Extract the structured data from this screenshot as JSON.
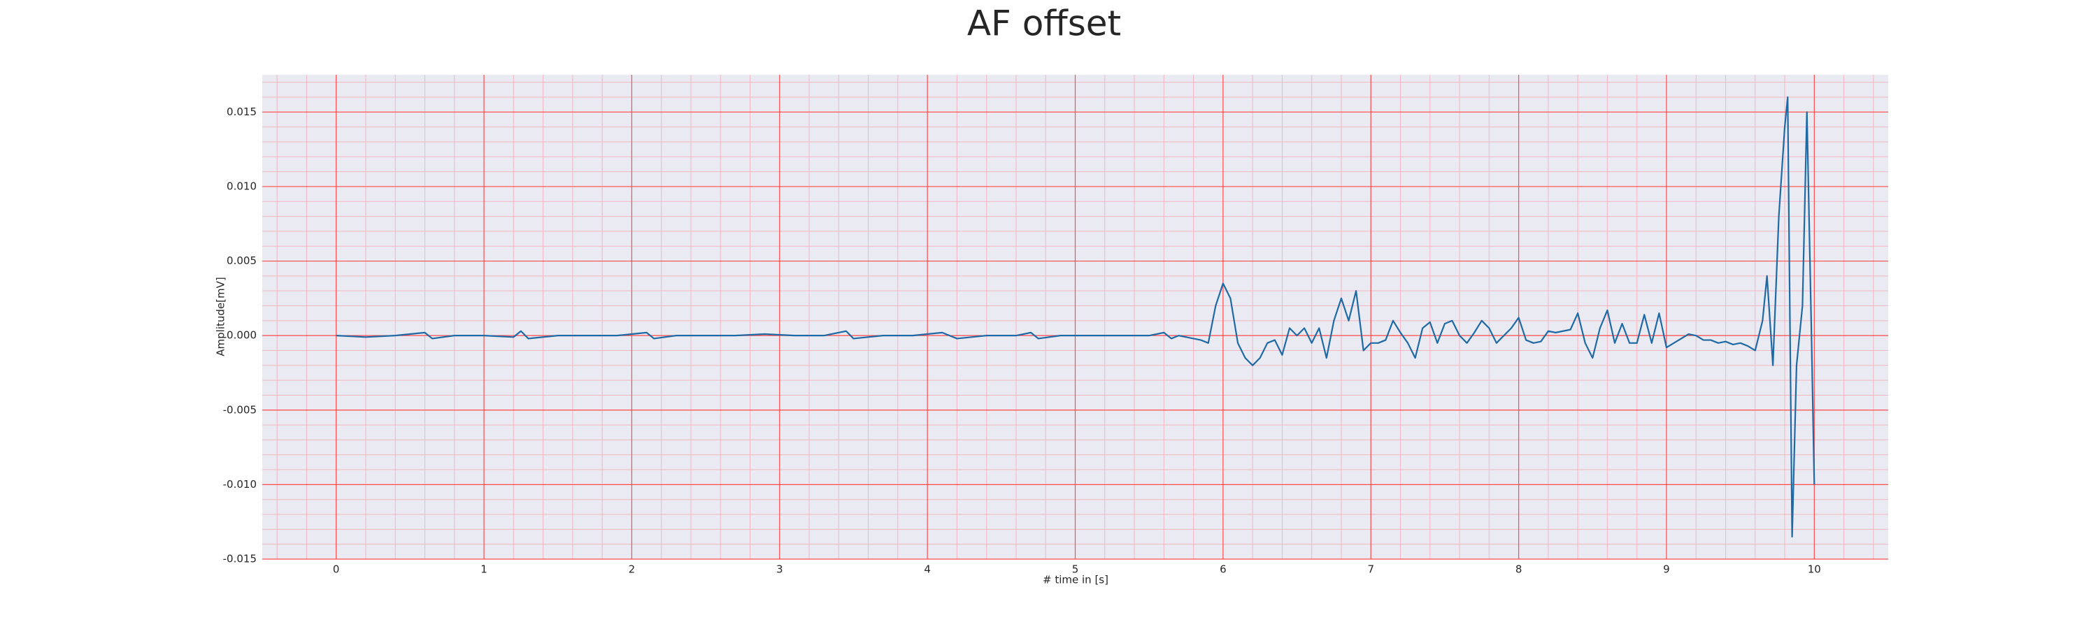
{
  "chart_data": {
    "type": "line",
    "title": "AF offset",
    "xlabel": "# time in [s]",
    "ylabel": "Amplitude[mV]",
    "xlim": [
      -0.5,
      10.5
    ],
    "ylim": [
      -0.015,
      0.0175
    ],
    "xticks": [
      0,
      1,
      2,
      3,
      4,
      5,
      6,
      7,
      8,
      9,
      10
    ],
    "yticks": [
      {
        "value": -0.015,
        "label": "-0.015"
      },
      {
        "value": -0.01,
        "label": "-0.010"
      },
      {
        "value": -0.005,
        "label": "-0.005"
      },
      {
        "value": 0,
        "label": "0.000"
      },
      {
        "value": 0.005,
        "label": "0.005"
      },
      {
        "value": 0.01,
        "label": "0.010"
      },
      {
        "value": 0.015,
        "label": "0.015"
      }
    ],
    "grid": true,
    "grid_color": "#ff4d4d",
    "minor_grid": true,
    "minor_grid_color": "#f4b6c2",
    "background": "#eaeaf2",
    "series": [
      {
        "color": "#1f6aa5",
        "x": [
          0,
          0.2,
          0.4,
          0.6,
          0.65,
          0.8,
          1.0,
          1.2,
          1.25,
          1.3,
          1.5,
          1.7,
          1.9,
          2.1,
          2.15,
          2.3,
          2.5,
          2.7,
          2.9,
          3.1,
          3.3,
          3.45,
          3.5,
          3.7,
          3.9,
          4.1,
          4.2,
          4.4,
          4.6,
          4.7,
          4.75,
          4.9,
          5.1,
          5.3,
          5.5,
          5.6,
          5.65,
          5.7,
          5.8,
          5.85,
          5.9,
          5.95,
          6.0,
          6.05,
          6.1,
          6.15,
          6.2,
          6.25,
          6.3,
          6.35,
          6.4,
          6.45,
          6.5,
          6.55,
          6.6,
          6.65,
          6.7,
          6.75,
          6.8,
          6.85,
          6.9,
          6.95,
          7.0,
          7.05,
          7.1,
          7.15,
          7.2,
          7.25,
          7.3,
          7.35,
          7.4,
          7.45,
          7.5,
          7.55,
          7.6,
          7.65,
          7.7,
          7.75,
          7.8,
          7.85,
          7.9,
          7.95,
          8.0,
          8.05,
          8.1,
          8.15,
          8.2,
          8.25,
          8.3,
          8.35,
          8.4,
          8.45,
          8.5,
          8.55,
          8.6,
          8.65,
          8.7,
          8.75,
          8.8,
          8.85,
          8.9,
          8.95,
          9.0,
          9.05,
          9.1,
          9.15,
          9.2,
          9.25,
          9.3,
          9.35,
          9.4,
          9.45,
          9.5,
          9.55,
          9.6,
          9.65,
          9.68,
          9.72,
          9.76,
          9.8,
          9.82,
          9.85,
          9.88,
          9.92,
          9.95,
          9.98,
          10.0
        ],
        "values": [
          0,
          -0.0001,
          0,
          0.0002,
          -0.0002,
          0,
          0,
          -0.0001,
          0.0003,
          -0.0002,
          0,
          0,
          0,
          0.0002,
          -0.0002,
          0,
          0,
          0,
          0.0001,
          0,
          0,
          0.0003,
          -0.0002,
          0,
          0,
          0.0002,
          -0.0002,
          0,
          0,
          0.0002,
          -0.0002,
          0,
          0,
          0,
          0,
          0.0002,
          -0.0002,
          0,
          -0.0002,
          -0.0003,
          -0.0005,
          0.002,
          0.0035,
          0.0025,
          -0.0005,
          -0.0015,
          -0.002,
          -0.0015,
          -0.0005,
          -0.0003,
          -0.0013,
          0.0005,
          0,
          0.0005,
          -0.0005,
          0.0005,
          -0.0015,
          0.001,
          0.0025,
          0.001,
          0.003,
          -0.001,
          -0.0005,
          -0.0005,
          -0.0003,
          0.001,
          0.0002,
          -0.0005,
          -0.0015,
          0.0005,
          0.0009,
          -0.0005,
          0.0008,
          0.001,
          0,
          -0.0005,
          0.0002,
          0.001,
          0.0005,
          -0.0005,
          0,
          0.0005,
          0.0012,
          -0.0003,
          -0.0005,
          -0.0004,
          0.0003,
          0.0002,
          0.0003,
          0.0004,
          0.0015,
          -0.0005,
          -0.0015,
          0.0005,
          0.0017,
          -0.0005,
          0.0008,
          -0.0005,
          -0.0005,
          0.0014,
          -0.0005,
          0.0015,
          -0.0008,
          -0.0005,
          -0.0002,
          0.0001,
          0,
          -0.0003,
          -0.0003,
          -0.0005,
          -0.0004,
          -0.0006,
          -0.0005,
          -0.0007,
          -0.001,
          0.001,
          0.004,
          -0.002,
          0.008,
          0.014,
          0.016,
          -0.0135,
          -0.002,
          0.002,
          0.015,
          0.0005,
          -0.01
        ]
      }
    ]
  }
}
